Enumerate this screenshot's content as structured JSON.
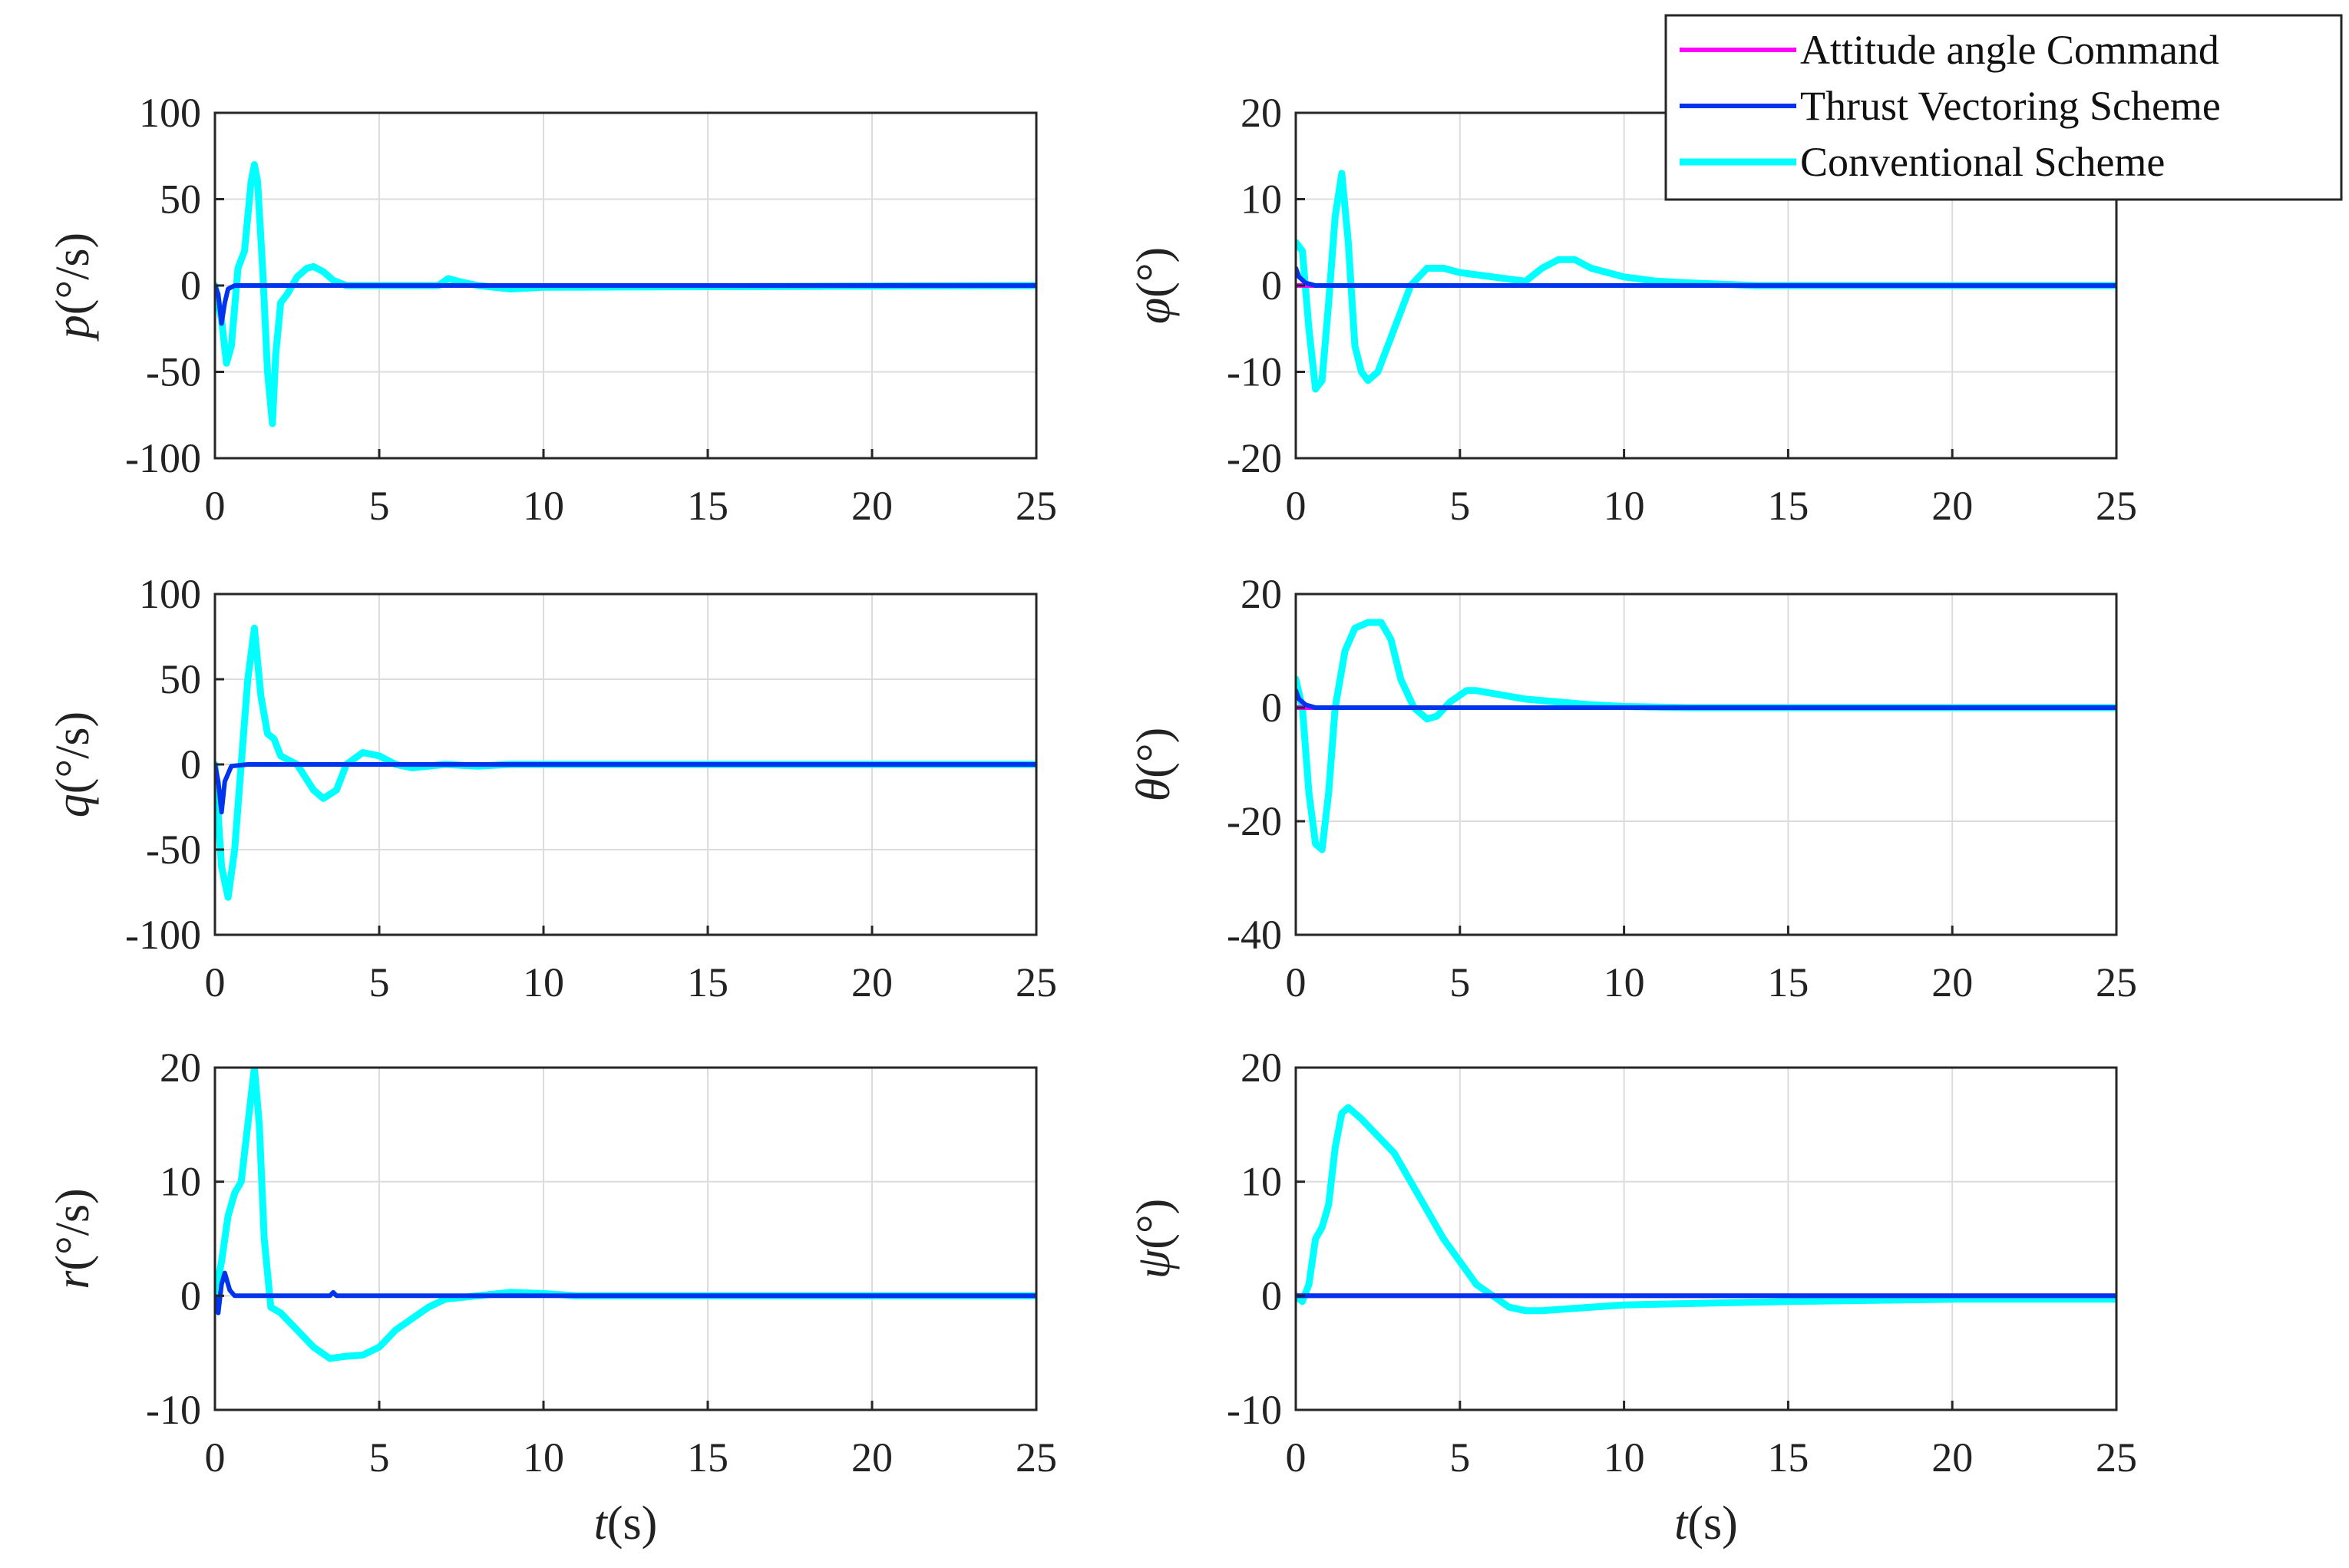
{
  "colors": {
    "command": "#FF00FF",
    "thrust_vectoring": "#0033EE",
    "conventional": "#00FFFF"
  },
  "legend": {
    "placement": "top-right",
    "entries": [
      "Attitude angle Command",
      "Thrust Vectoring Scheme",
      "Conventional Scheme"
    ]
  },
  "chart_data": [
    {
      "type": "line",
      "ylabel_var": "p",
      "ylabel_unit": "(°/s)",
      "xlim": [
        0,
        25
      ],
      "ylim": [
        -100,
        100
      ],
      "xticks": [
        0,
        5,
        10,
        15,
        20,
        25
      ],
      "yticks": [
        -100,
        -50,
        0,
        50,
        100
      ],
      "grid": true,
      "xlabel": "",
      "series": [
        {
          "name": "Thrust Vectoring Scheme",
          "x": [
            0,
            0.1,
            0.2,
            0.3,
            0.4,
            0.6,
            1.0,
            3,
            25
          ],
          "y": [
            0,
            -5,
            -22,
            -10,
            -2,
            0,
            0,
            0,
            0
          ]
        },
        {
          "name": "Conventional Scheme",
          "x": [
            0,
            0.2,
            0.35,
            0.5,
            0.7,
            0.9,
            1.1,
            1.2,
            1.3,
            1.45,
            1.6,
            1.75,
            1.85,
            2.0,
            2.2,
            2.5,
            2.8,
            3.0,
            3.3,
            3.6,
            4.0,
            5,
            6,
            6.8,
            7.1,
            7.5,
            8,
            9,
            10,
            25
          ],
          "y": [
            0,
            -20,
            -45,
            -35,
            10,
            20,
            60,
            70,
            60,
            10,
            -50,
            -80,
            -40,
            -10,
            -5,
            5,
            10,
            11,
            8,
            3,
            0,
            0,
            0,
            0,
            4,
            2,
            0,
            -2,
            -1,
            0
          ]
        }
      ]
    },
    {
      "type": "line",
      "ylabel_var": "φ",
      "ylabel_unit": "(°)",
      "xlim": [
        0,
        25
      ],
      "ylim": [
        -20,
        20
      ],
      "xticks": [
        0,
        5,
        10,
        15,
        20,
        25
      ],
      "yticks": [
        -20,
        -10,
        0,
        10,
        20
      ],
      "grid": true,
      "xlabel": "",
      "series": [
        {
          "name": "Attitude angle Command",
          "x": [
            0,
            25
          ],
          "y": [
            0,
            0
          ]
        },
        {
          "name": "Thrust Vectoring Scheme",
          "x": [
            0,
            0.1,
            0.3,
            0.6,
            1.0,
            3,
            25
          ],
          "y": [
            2,
            1,
            0.3,
            0,
            0,
            0,
            0
          ]
        },
        {
          "name": "Conventional Scheme",
          "x": [
            0,
            0.2,
            0.4,
            0.6,
            0.8,
            1.0,
            1.2,
            1.4,
            1.6,
            1.8,
            2.0,
            2.2,
            2.5,
            3.0,
            3.5,
            4.0,
            4.5,
            5,
            6,
            7,
            7.5,
            8,
            8.5,
            9,
            10,
            11,
            12,
            14,
            17,
            25
          ],
          "y": [
            5,
            4,
            -5,
            -12,
            -11,
            -2,
            8,
            13,
            5,
            -7,
            -10,
            -11,
            -10,
            -5,
            0,
            2,
            2,
            1.5,
            1,
            0.5,
            2,
            3,
            3,
            2,
            1,
            0.5,
            0.3,
            0,
            0,
            0
          ]
        }
      ]
    },
    {
      "type": "line",
      "ylabel_var": "q",
      "ylabel_unit": "(°/s)",
      "xlim": [
        0,
        25
      ],
      "ylim": [
        -100,
        100
      ],
      "xticks": [
        0,
        5,
        10,
        15,
        20,
        25
      ],
      "yticks": [
        -100,
        -50,
        0,
        50,
        100
      ],
      "grid": true,
      "xlabel": "",
      "series": [
        {
          "name": "Thrust Vectoring Scheme",
          "x": [
            0,
            0.1,
            0.2,
            0.3,
            0.5,
            1.0,
            3,
            25
          ],
          "y": [
            0,
            -10,
            -28,
            -10,
            -1,
            0,
            0,
            0
          ]
        },
        {
          "name": "Conventional Scheme",
          "x": [
            0,
            0.2,
            0.4,
            0.6,
            0.8,
            1.0,
            1.2,
            1.4,
            1.6,
            1.8,
            2.0,
            2.5,
            3.0,
            3.3,
            3.7,
            4.0,
            4.5,
            5.0,
            5.5,
            6.0,
            7,
            8,
            9,
            10,
            25
          ],
          "y": [
            0,
            -60,
            -78,
            -50,
            0,
            50,
            80,
            40,
            18,
            15,
            5,
            0,
            -15,
            -20,
            -15,
            0,
            7,
            5,
            0,
            -2,
            0,
            -1,
            0,
            0,
            0
          ]
        }
      ]
    },
    {
      "type": "line",
      "ylabel_var": "θ",
      "ylabel_unit": "(°)",
      "xlim": [
        0,
        25
      ],
      "ylim": [
        -40,
        20
      ],
      "xticks": [
        0,
        5,
        10,
        15,
        20,
        25
      ],
      "yticks": [
        -40,
        -20,
        0,
        20
      ],
      "grid": true,
      "xlabel": "",
      "series": [
        {
          "name": "Attitude angle Command",
          "x": [
            0,
            25
          ],
          "y": [
            0,
            0
          ]
        },
        {
          "name": "Thrust Vectoring Scheme",
          "x": [
            0,
            0.1,
            0.3,
            0.6,
            1.0,
            3,
            25
          ],
          "y": [
            3,
            1.5,
            0.5,
            0,
            0,
            0,
            0
          ]
        },
        {
          "name": "Conventional Scheme",
          "x": [
            0,
            0.2,
            0.4,
            0.6,
            0.8,
            1.0,
            1.2,
            1.5,
            1.8,
            2.2,
            2.6,
            2.9,
            3.2,
            3.6,
            4.0,
            4.3,
            4.7,
            5.2,
            5.5,
            6.0,
            7,
            8,
            9,
            10,
            12,
            15,
            25
          ],
          "y": [
            5,
            0,
            -15,
            -24,
            -25,
            -15,
            0,
            10,
            14,
            15,
            15,
            12,
            5,
            0,
            -2,
            -1.5,
            1,
            3,
            3,
            2.5,
            1.5,
            1,
            0.5,
            0.2,
            0,
            0,
            0
          ]
        }
      ]
    },
    {
      "type": "line",
      "ylabel_var": "r",
      "ylabel_unit": "(°/s)",
      "xlim": [
        0,
        25
      ],
      "ylim": [
        -10,
        20
      ],
      "xticks": [
        0,
        5,
        10,
        15,
        20,
        25
      ],
      "yticks": [
        -10,
        0,
        10,
        20
      ],
      "grid": true,
      "xlabel": "t(s)",
      "series": [
        {
          "name": "Thrust Vectoring Scheme",
          "x": [
            0,
            0.1,
            0.2,
            0.3,
            0.45,
            0.6,
            1.0,
            3.5,
            3.6,
            3.7,
            25
          ],
          "y": [
            0,
            -1.5,
            1,
            2,
            0.5,
            0,
            0,
            0,
            0.3,
            0,
            0
          ]
        },
        {
          "name": "Conventional Scheme",
          "x": [
            0,
            0.2,
            0.4,
            0.6,
            0.8,
            1.0,
            1.2,
            1.35,
            1.5,
            1.7,
            2.0,
            2.5,
            3.0,
            3.5,
            4.0,
            4.5,
            5.0,
            5.5,
            6.0,
            6.5,
            7,
            8,
            9,
            10,
            11,
            25
          ],
          "y": [
            0,
            3,
            7,
            9,
            10,
            15,
            20,
            15,
            5,
            -1,
            -1.5,
            -3,
            -4.5,
            -5.5,
            -5.3,
            -5.2,
            -4.5,
            -3,
            -2,
            -1,
            -0.3,
            0,
            0.3,
            0.2,
            0,
            0
          ]
        }
      ]
    },
    {
      "type": "line",
      "ylabel_var": "ψ",
      "ylabel_unit": "(°)",
      "xlim": [
        0,
        25
      ],
      "ylim": [
        -10,
        20
      ],
      "xticks": [
        0,
        5,
        10,
        15,
        20,
        25
      ],
      "yticks": [
        -10,
        0,
        10,
        20
      ],
      "grid": true,
      "xlabel": "t(s)",
      "series": [
        {
          "name": "Attitude angle Command",
          "x": [
            0,
            25
          ],
          "y": [
            0,
            0
          ]
        },
        {
          "name": "Thrust Vectoring Scheme",
          "x": [
            0,
            0.2,
            0.5,
            1.0,
            25
          ],
          "y": [
            0,
            0,
            0,
            0,
            0
          ]
        },
        {
          "name": "Conventional Scheme",
          "x": [
            0,
            0.2,
            0.4,
            0.6,
            0.8,
            1.0,
            1.2,
            1.4,
            1.6,
            1.8,
            2.0,
            2.5,
            3.0,
            3.5,
            4.0,
            4.5,
            5.0,
            5.5,
            6.0,
            6.5,
            7.0,
            7.5,
            8,
            10,
            15,
            20,
            25
          ],
          "y": [
            0,
            -0.5,
            1,
            5,
            6,
            8,
            13,
            16,
            16.5,
            16,
            15.5,
            14,
            12.5,
            10,
            7.5,
            5,
            3,
            1,
            0,
            -1,
            -1.3,
            -1.3,
            -1.2,
            -0.8,
            -0.5,
            -0.3,
            -0.3
          ]
        }
      ]
    }
  ]
}
